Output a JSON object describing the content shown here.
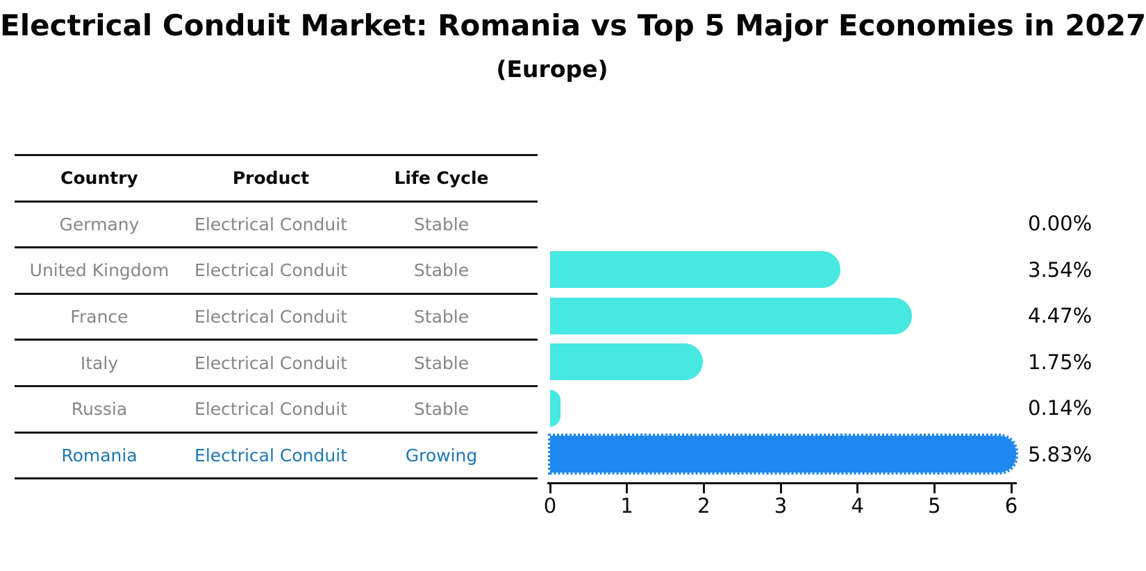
{
  "title": "Electrical Conduit Market: Romania vs Top 5 Major Economies in 2027",
  "subtitle": "(Europe)",
  "table": {
    "headers": [
      "Country",
      "Product",
      "Life Cycle"
    ],
    "rows": [
      {
        "country": "Germany",
        "product": "Electrical Conduit",
        "life_cycle": "Stable",
        "highlight": false
      },
      {
        "country": "United Kingdom",
        "product": "Electrical Conduit",
        "life_cycle": "Stable",
        "highlight": false
      },
      {
        "country": "France",
        "product": "Electrical Conduit",
        "life_cycle": "Stable",
        "highlight": false
      },
      {
        "country": "Italy",
        "product": "Electrical Conduit",
        "life_cycle": "Stable",
        "highlight": false
      },
      {
        "country": "Russia",
        "product": "Electrical Conduit",
        "life_cycle": "Stable",
        "highlight": false
      },
      {
        "country": "Romania",
        "product": "Electrical Conduit",
        "life_cycle": "Growing",
        "highlight": true
      }
    ]
  },
  "chart_data": {
    "type": "bar",
    "orientation": "horizontal",
    "title": "Electrical Conduit Market: Romania vs Top 5 Major Economies in 2027 (Europe)",
    "categories": [
      "Germany",
      "United Kingdom",
      "France",
      "Italy",
      "Russia",
      "Romania"
    ],
    "values": [
      0.0,
      3.54,
      4.47,
      1.75,
      0.14,
      5.83
    ],
    "value_labels": [
      "0.00%",
      "3.54%",
      "4.47%",
      "1.75%",
      "0.14%",
      "5.83%"
    ],
    "xlabel": "",
    "ylabel": "",
    "xlim": [
      0,
      6
    ],
    "xticks": [
      "0",
      "1",
      "2",
      "3",
      "4",
      "5",
      "6"
    ],
    "grid": false,
    "legend": "none",
    "highlight_category": "Romania"
  },
  "colors": {
    "bar_default": "#46e8e1",
    "bar_highlight": "#1e87f0",
    "highlight_text": "#1f77b4",
    "table_text": "#878787",
    "axis_text": "#0a0a0a",
    "rule": "#161616",
    "background": "#ffffff"
  }
}
